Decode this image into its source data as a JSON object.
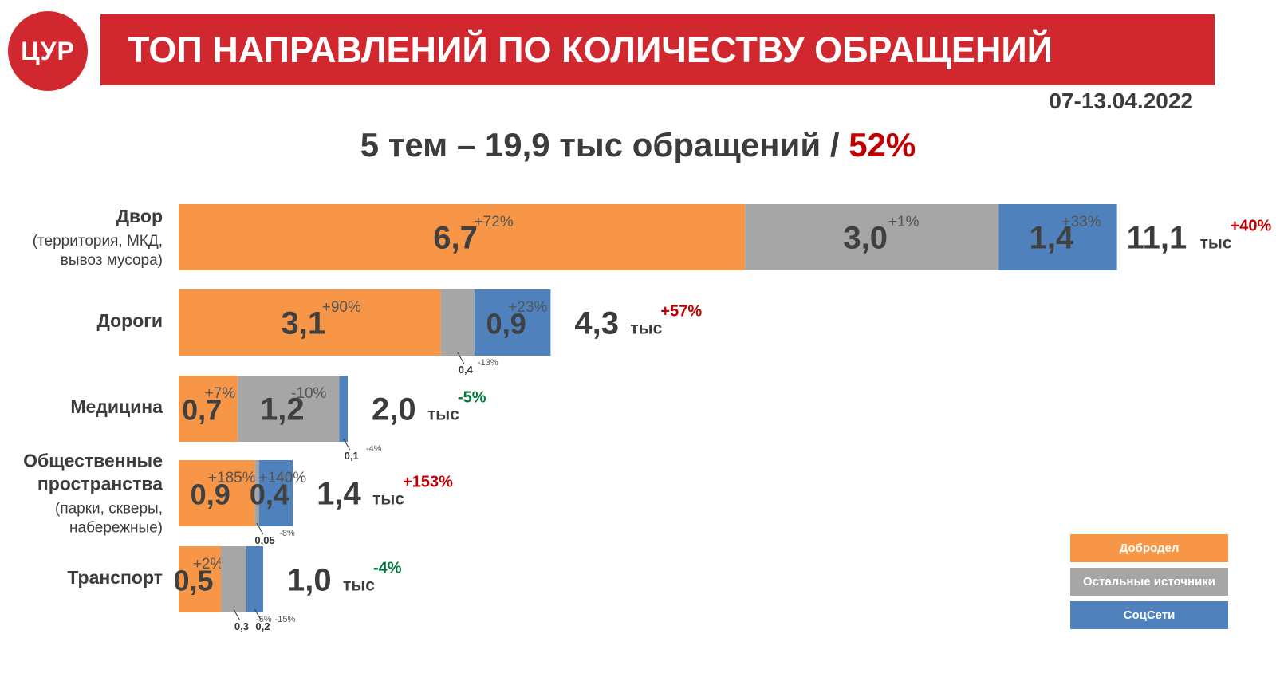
{
  "header": {
    "logo_text": "ЦУР",
    "title": "ТОП НАПРАВЛЕНИЙ ПО КОЛИЧЕСТВУ ОБРАЩЕНИЙ",
    "date": "07-13.04.2022",
    "subtitle_main": "5 тем – 19,9 тыс обращений / ",
    "subtitle_pct": "52%"
  },
  "colors": {
    "dobrodel": "#f79646",
    "other": "#a6a6a6",
    "social": "#4f81bd",
    "red": "#c00000",
    "green": "#007a3d",
    "text": "#3c3c3c"
  },
  "chart_data": {
    "type": "bar",
    "orientation": "horizontal",
    "stacked": true,
    "unit": "тыс",
    "legend_position": "bottom-right",
    "series": [
      {
        "key": "dobrodel",
        "name": "Добродел"
      },
      {
        "key": "other",
        "name": "Остальные источники"
      },
      {
        "key": "social",
        "name": "СоцСети"
      }
    ],
    "categories": [
      {
        "title": "Двор",
        "sub": [
          "(территория, МКД,",
          "вывоз мусора)"
        ],
        "total_value": 11.1,
        "total_text": "11,1",
        "total_unit": "тыс",
        "total_change": "+40%",
        "trend": "up",
        "segments": [
          {
            "series": "dobrodel",
            "value": 6.7,
            "label": "6,7",
            "change": "+72%"
          },
          {
            "series": "other",
            "value": 3.0,
            "label": "3,0",
            "change": "+1%"
          },
          {
            "series": "social",
            "value": 1.4,
            "label": "1,4",
            "change": "+33%"
          }
        ]
      },
      {
        "title": "Дороги",
        "sub": [],
        "total_value": 4.3,
        "total_text": "4,3",
        "total_unit": "тыс",
        "total_change": "+57%",
        "trend": "up",
        "segments": [
          {
            "series": "dobrodel",
            "value": 3.1,
            "label": "3,1",
            "change": "+90%"
          },
          {
            "series": "other",
            "value": 0.4,
            "label": "0,4",
            "change": "-13%",
            "callout": true
          },
          {
            "series": "social",
            "value": 0.9,
            "label": "0,9",
            "change": "+23%"
          }
        ]
      },
      {
        "title": "Медицина",
        "sub": [],
        "total_value": 2.0,
        "total_text": "2,0",
        "total_unit": "тыс",
        "total_change": "-5%",
        "trend": "down",
        "segments": [
          {
            "series": "dobrodel",
            "value": 0.7,
            "label": "0,7",
            "change": "+7%"
          },
          {
            "series": "other",
            "value": 1.2,
            "label": "1,2",
            "change": "-10%"
          },
          {
            "series": "social",
            "value": 0.1,
            "label": "0,1",
            "change": "-4%",
            "callout": true
          }
        ]
      },
      {
        "title": "Общественные",
        "title2": "пространства",
        "sub": [
          "(парки, скверы,",
          "набережные)"
        ],
        "total_value": 1.4,
        "total_text": "1,4",
        "total_unit": "тыс",
        "total_change": "+153%",
        "trend": "up",
        "segments": [
          {
            "series": "dobrodel",
            "value": 0.9,
            "label": "0,9",
            "change": "+185%"
          },
          {
            "series": "other",
            "value": 0.05,
            "label": "0,05",
            "change": "-8%",
            "callout": true
          },
          {
            "series": "social",
            "value": 0.4,
            "label": "0,4",
            "change": "+140%"
          }
        ]
      },
      {
        "title": "Транспорт",
        "sub": [],
        "total_value": 1.0,
        "total_text": "1,0",
        "total_unit": "тыс",
        "total_change": "-4%",
        "trend": "down",
        "segments": [
          {
            "series": "dobrodel",
            "value": 0.5,
            "label": "0,5",
            "change": "+2%"
          },
          {
            "series": "other",
            "value": 0.3,
            "label": "0,3",
            "change": "-5%",
            "callout": true
          },
          {
            "series": "social",
            "value": 0.2,
            "label": "0,2",
            "change": "-15%",
            "callout": true
          }
        ]
      }
    ]
  }
}
